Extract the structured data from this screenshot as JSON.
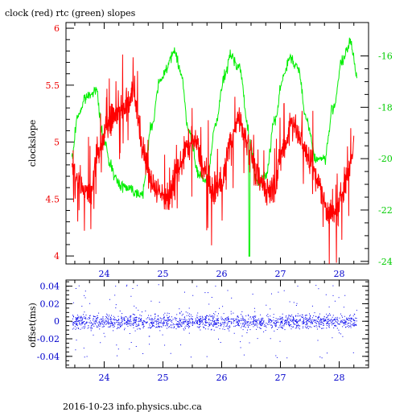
{
  "chart_data": [
    {
      "type": "line",
      "title": "clock (red) rtc (green) slopes",
      "ylabel": "clockslope",
      "xlim": [
        23.35,
        28.5
      ],
      "ylim_left": [
        3.93,
        6.05
      ],
      "ylim_right": [
        -24.1,
        -14.7
      ],
      "x_ticks": [
        "24",
        "25",
        "26",
        "27",
        "28"
      ],
      "y_ticks_left": [
        "4",
        "4.5",
        "5",
        "5.5",
        "6"
      ],
      "y_ticks_right": [
        "-24",
        "-22",
        "-20",
        "-18",
        "-16"
      ],
      "series": [
        {
          "name": "clock",
          "axis": "left",
          "color": "#ff0000",
          "x": [
            23.45,
            23.6,
            23.75,
            23.9,
            24.05,
            24.2,
            24.35,
            24.5,
            24.65,
            24.8,
            24.95,
            25.1,
            25.25,
            25.4,
            25.55,
            25.7,
            25.85,
            26.0,
            26.15,
            26.3,
            26.45,
            26.6,
            26.75,
            26.9,
            27.05,
            27.2,
            27.35,
            27.5,
            27.65,
            27.8,
            27.95,
            28.1,
            28.25
          ],
          "y": [
            4.85,
            4.6,
            4.55,
            4.9,
            5.15,
            5.25,
            5.3,
            5.45,
            4.95,
            4.65,
            4.55,
            4.5,
            4.75,
            4.95,
            5.0,
            4.75,
            4.55,
            4.65,
            5.0,
            5.2,
            5.0,
            4.7,
            4.6,
            4.6,
            4.95,
            5.2,
            5.0,
            4.85,
            4.65,
            4.4,
            4.35,
            4.65,
            4.95
          ]
        },
        {
          "name": "rtc",
          "axis": "right",
          "color": "#00ee00",
          "x": [
            23.45,
            23.55,
            23.7,
            23.85,
            24.0,
            24.1,
            24.25,
            24.4,
            24.55,
            24.65,
            24.8,
            24.95,
            25.1,
            25.2,
            25.3,
            25.45,
            25.6,
            25.75,
            25.9,
            26.05,
            26.15,
            26.3,
            26.45,
            26.6,
            26.75,
            26.9,
            27.05,
            27.15,
            27.3,
            27.45,
            27.6,
            27.75,
            27.9,
            28.05,
            28.2,
            28.3
          ],
          "y": [
            -20.0,
            -18.3,
            -17.6,
            -17.3,
            -19.3,
            -20.2,
            -21.0,
            -21.1,
            -21.3,
            -21.4,
            -18.8,
            -17.0,
            -16.3,
            -15.8,
            -16.6,
            -19.0,
            -20.6,
            -20.9,
            -18.6,
            -16.8,
            -16.0,
            -16.4,
            -18.8,
            -21.0,
            -20.7,
            -18.5,
            -16.8,
            -16.1,
            -16.5,
            -18.5,
            -20.0,
            -20.0,
            -18.0,
            -16.2,
            -15.5,
            -16.8
          ]
        }
      ]
    },
    {
      "type": "scatter",
      "ylabel": "offset(ms)",
      "xlim": [
        23.35,
        28.5
      ],
      "ylim": [
        -0.053,
        0.047
      ],
      "x_ticks": [
        "24",
        "25",
        "26",
        "27",
        "28"
      ],
      "y_ticks": [
        "0.04",
        "0.02",
        "0",
        "-0.02",
        "-0.04"
      ],
      "series": [
        {
          "name": "offset",
          "color": "#0000ee",
          "x_range": [
            23.45,
            28.3
          ],
          "center": 0.0,
          "spread_core": 0.015,
          "spread_outlier": 0.045
        }
      ]
    }
  ],
  "footer": "2016-10-23 info.physics.ubc.ca"
}
